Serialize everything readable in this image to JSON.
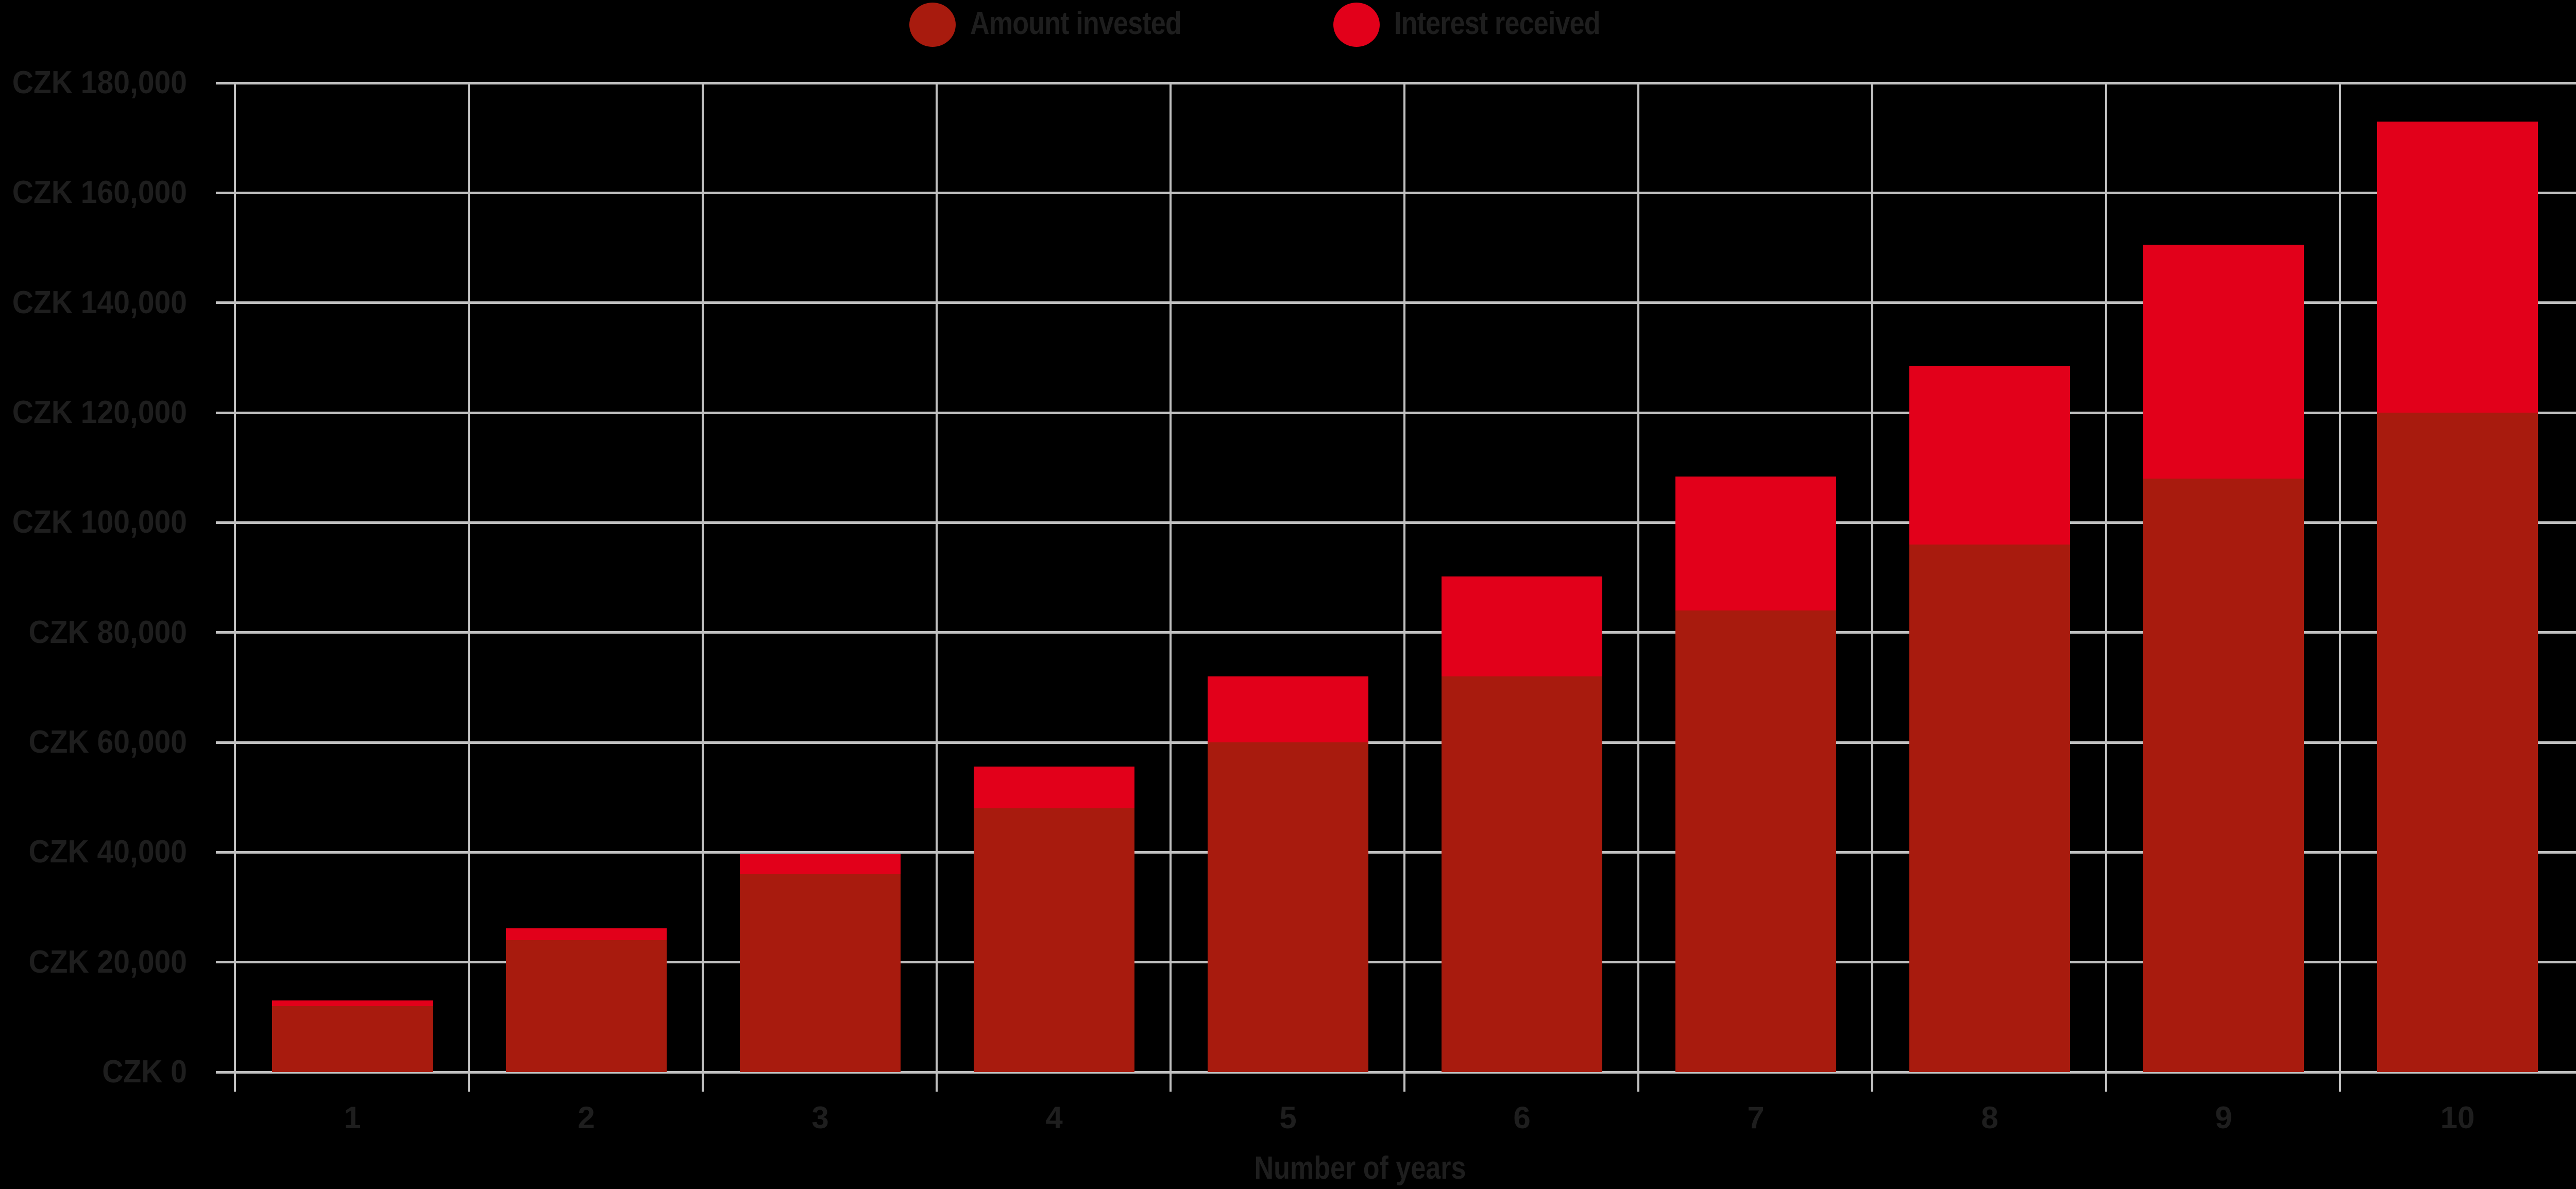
{
  "legend": {
    "items": [
      {
        "label": "Amount invested",
        "color": "#a81b0e",
        "icon": "circle-swatch-icon"
      },
      {
        "label": "Interest received",
        "color": "#e2001a",
        "icon": "circle-swatch-icon"
      }
    ]
  },
  "axes": {
    "x_title": "Number of years",
    "y_ticks": [
      "CZK 0",
      "CZK 20,000",
      "CZK 40,000",
      "CZK 60,000",
      "CZK 80,000",
      "CZK 100,000",
      "CZK 120,000",
      "CZK 140,000",
      "CZK 160,000",
      "CZK 180,000"
    ],
    "x_ticks": [
      "1",
      "2",
      "3",
      "4",
      "5",
      "6",
      "7",
      "8",
      "9",
      "10"
    ]
  },
  "colors": {
    "background": "#000000",
    "grid": "#c0c0c0",
    "text": "#1e1e1e",
    "amount_invested": "#a81b0e",
    "interest_received": "#e2001a"
  },
  "chart_data": {
    "type": "bar",
    "stacked": true,
    "title": "",
    "xlabel": "Number of years",
    "ylabel": "",
    "currency": "CZK",
    "categories": [
      "1",
      "2",
      "3",
      "4",
      "5",
      "6",
      "7",
      "8",
      "9",
      "10"
    ],
    "series": [
      {
        "name": "Amount invested",
        "color": "#a81b0e",
        "values": [
          12000,
          24000,
          36000,
          48000,
          60000,
          72000,
          84000,
          96000,
          108000,
          120000
        ]
      },
      {
        "name": "Interest received",
        "color": "#e2001a",
        "values": [
          1000,
          2200,
          3700,
          7600,
          12000,
          18200,
          24400,
          32500,
          42600,
          53000
        ]
      }
    ],
    "totals": [
      13000,
      26200,
      39700,
      55600,
      72000,
      90200,
      108400,
      128500,
      150600,
      173000
    ],
    "ylim": [
      0,
      180000
    ],
    "y_tick_step": 20000,
    "grid": true,
    "legend_position": "top"
  }
}
